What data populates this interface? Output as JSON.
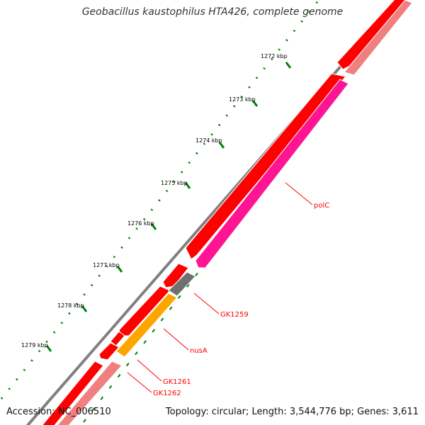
{
  "title": "Geobacillus kaustophilus HTA426, complete genome",
  "footer": {
    "accession": "Accession: NC_006510",
    "summary": "Topology: circular; Length: 3,544,776 bp; Genes: 3,611"
  },
  "scale": {
    "unit": "kbp",
    "labels": [
      "1272 kbp",
      "1273 kbp",
      "1274 kbp",
      "1275 kbp",
      "1276 kbp",
      "1277 kbp",
      "1278 kbp",
      "1279 kbp"
    ]
  },
  "gene_labels": [
    "polC",
    "GK1259",
    "nusA",
    "GK1261",
    "GK1262"
  ],
  "colors": {
    "backbone": "#808080",
    "forward_strand": "#ff0000",
    "reverse_strand": "#f08080",
    "polC": "#ff1493",
    "GK1259": "#707070",
    "nusA": "#ffa500",
    "ticks": "#008000",
    "labels": "#ff0000"
  }
}
